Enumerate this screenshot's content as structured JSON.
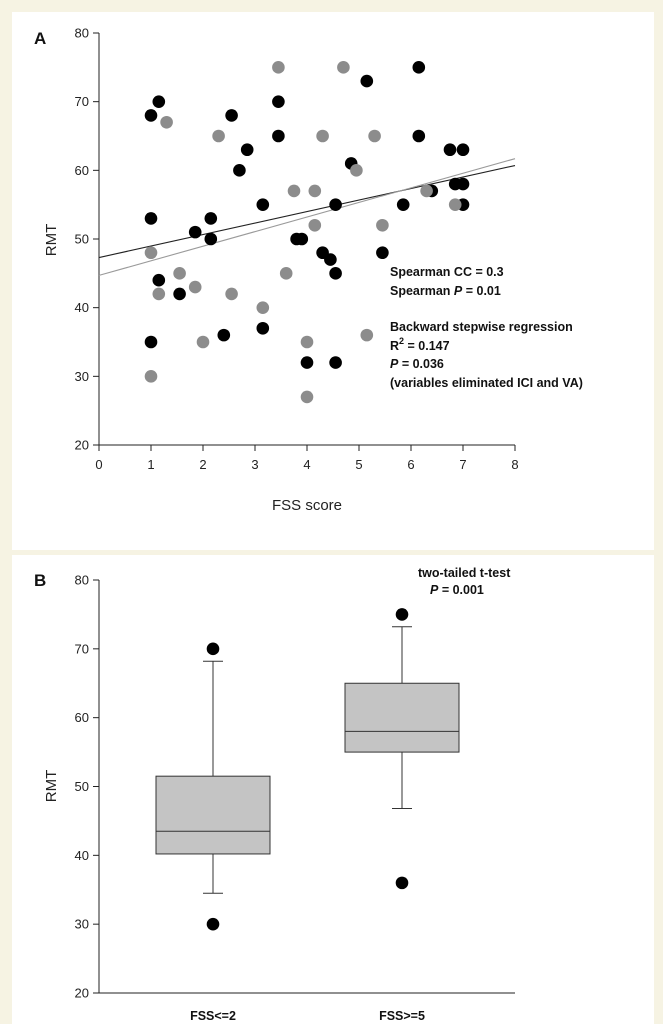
{
  "colors": {
    "background": "#f6f3e3",
    "panel": "#ffffff",
    "black_points": "#000000",
    "grey_points": "#8c8c8c",
    "box_fill": "#c4c4c4",
    "fit_black": "#222222",
    "fit_grey": "#9a9a9a"
  },
  "chart_data": [
    {
      "panel": "A",
      "type": "scatter",
      "xlabel": "FSS score",
      "ylabel": "RMT",
      "xlim": [
        0,
        8
      ],
      "ylim": [
        20,
        80
      ],
      "xticks": [
        0,
        1,
        2,
        3,
        4,
        5,
        6,
        7,
        8
      ],
      "yticks": [
        20,
        30,
        40,
        50,
        60,
        70,
        80
      ],
      "grid": false,
      "series": [
        {
          "color": "#000000",
          "points": [
            [
              1.0,
              68
            ],
            [
              1.15,
              70
            ],
            [
              1.0,
              53
            ],
            [
              1.15,
              44
            ],
            [
              1.0,
              35
            ],
            [
              1.55,
              42
            ],
            [
              1.85,
              51
            ],
            [
              2.15,
              53
            ],
            [
              2.15,
              50
            ],
            [
              2.4,
              36
            ],
            [
              2.55,
              68
            ],
            [
              2.7,
              60
            ],
            [
              2.85,
              63
            ],
            [
              3.15,
              55
            ],
            [
              3.15,
              37
            ],
            [
              3.45,
              70
            ],
            [
              3.45,
              65
            ],
            [
              3.8,
              50
            ],
            [
              3.9,
              50
            ],
            [
              4.0,
              32
            ],
            [
              4.3,
              48
            ],
            [
              4.45,
              47
            ],
            [
              4.55,
              45
            ],
            [
              4.55,
              55
            ],
            [
              4.55,
              32
            ],
            [
              4.85,
              61
            ],
            [
              5.15,
              73
            ],
            [
              5.45,
              48
            ],
            [
              5.85,
              55
            ],
            [
              6.15,
              75
            ],
            [
              6.15,
              65
            ],
            [
              6.4,
              57
            ],
            [
              6.75,
              63
            ],
            [
              6.85,
              58
            ],
            [
              7.0,
              63
            ],
            [
              7.0,
              58
            ],
            [
              7.0,
              55
            ]
          ],
          "fit": {
            "from": [
              0,
              47.3
            ],
            "to": [
              8,
              60.7
            ]
          }
        },
        {
          "color": "#8c8c8c",
          "points": [
            [
              1.0,
              48
            ],
            [
              1.0,
              30
            ],
            [
              1.15,
              42
            ],
            [
              1.3,
              67
            ],
            [
              1.55,
              45
            ],
            [
              1.85,
              43
            ],
            [
              2.0,
              35
            ],
            [
              2.3,
              65
            ],
            [
              2.55,
              42
            ],
            [
              3.15,
              40
            ],
            [
              3.45,
              75
            ],
            [
              3.6,
              45
            ],
            [
              3.75,
              57
            ],
            [
              4.0,
              35
            ],
            [
              4.0,
              27
            ],
            [
              4.15,
              57
            ],
            [
              4.15,
              52
            ],
            [
              4.3,
              65
            ],
            [
              4.7,
              75
            ],
            [
              4.95,
              60
            ],
            [
              5.15,
              36
            ],
            [
              5.3,
              65
            ],
            [
              5.45,
              52
            ],
            [
              6.3,
              57
            ],
            [
              6.85,
              55
            ]
          ],
          "fit": {
            "from": [
              0,
              44.7
            ],
            "to": [
              8,
              61.7
            ]
          }
        }
      ],
      "annotations": {
        "line1": "Spearman CC = 0.3",
        "line2_prefix": "Spearman ",
        "line2_p": "P",
        "line2_suffix": " = 0.01",
        "line3": "Backward stepwise regression",
        "line4_r": "R",
        "line4_sup": "2",
        "line4_suffix": " = 0.147",
        "line5_p": "P",
        "line5_suffix": " = 0.036",
        "line6": "(variables eliminated ICI and VA)"
      }
    },
    {
      "panel": "B",
      "type": "box",
      "ylabel": "RMT",
      "ylim": [
        20,
        80
      ],
      "yticks": [
        20,
        30,
        40,
        50,
        60,
        70,
        80
      ],
      "categories": [
        "FSS<=2",
        "FSS>=5"
      ],
      "boxes": [
        {
          "whisker_low": 34.5,
          "q1": 40.2,
          "median": 43.5,
          "q3": 51.5,
          "whisker_high": 68.2,
          "outliers": [
            30,
            70
          ]
        },
        {
          "whisker_low": 46.8,
          "q1": 55.0,
          "median": 58.0,
          "q3": 65.0,
          "whisker_high": 73.2,
          "outliers": [
            36,
            75
          ]
        }
      ],
      "annotations": {
        "test": "two-tailed t-test",
        "p_label": "P",
        "p_suffix": " = 0.001"
      }
    }
  ]
}
